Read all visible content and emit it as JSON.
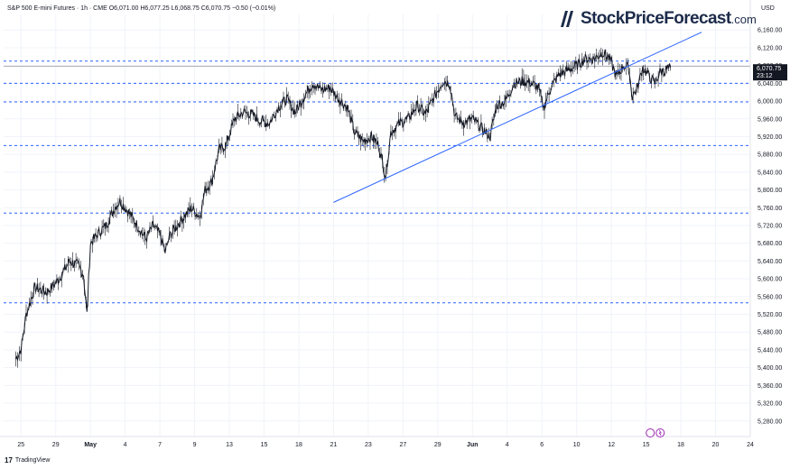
{
  "header": {
    "symbol": "S&P 500 E-mini Futures · 1h · CME",
    "open": "O6,071.00",
    "high": "H6,077.25",
    "low": "L6,068.75",
    "close": "C6,070.75",
    "change": "−0.50 (−0.01%)"
  },
  "brand": {
    "name": "StockPriceForecast",
    "suffix": ".com"
  },
  "footer": {
    "logo": "17",
    "label": "TradingView"
  },
  "axis_currency": "USD",
  "colors": {
    "line": "#2962ff",
    "candle": "#131722",
    "grid": "#f0f3fa",
    "dashed": "#2962ff",
    "price_tag": "#131722"
  },
  "chart_data": {
    "type": "line",
    "ylim": [
      5245,
      6195
    ],
    "xlim": [
      -1,
      42
    ],
    "y_ticks": [
      5280,
      5320,
      5360,
      5400,
      5440,
      5480,
      5520,
      5560,
      5600,
      5640,
      5680,
      5720,
      5760,
      5800,
      5840,
      5880,
      5920,
      5960,
      6000,
      6040,
      6080,
      6120,
      6160
    ],
    "y_tick_labels": [
      "5,280.00",
      "5,320.00",
      "5,360.00",
      "5,400.00",
      "5,440.00",
      "5,480.00",
      "5,520.00",
      "5,560.00",
      "5,600.00",
      "5,640.00",
      "5,680.00",
      "5,720.00",
      "5,760.00",
      "5,800.00",
      "5,840.00",
      "5,880.00",
      "5,920.00",
      "5,960.00",
      "6,000.00",
      "6,040.00",
      "6,080.00",
      "6,120.00",
      "6,160.00"
    ],
    "x_ticks": [
      0,
      2,
      4,
      6,
      8,
      10,
      12,
      14,
      16,
      18,
      20,
      22,
      24,
      26,
      28,
      30,
      32,
      34,
      36,
      38,
      40,
      42
    ],
    "x_tick_labels": [
      "25",
      "29",
      "May",
      "4",
      "7",
      "9",
      "13",
      "15",
      "18",
      "21",
      "23",
      "27",
      "29",
      "Jun",
      "4",
      "6",
      "10",
      "12",
      "15",
      "18",
      "20",
      "24"
    ],
    "price_series": [
      [
        -0.3,
        5420
      ],
      [
        0,
        5440
      ],
      [
        0.3,
        5520
      ],
      [
        0.8,
        5580
      ],
      [
        1.5,
        5570
      ],
      [
        2.2,
        5600
      ],
      [
        2.8,
        5640
      ],
      [
        3.3,
        5630
      ],
      [
        3.6,
        5610
      ],
      [
        3.8,
        5520
      ],
      [
        4.0,
        5680
      ],
      [
        4.4,
        5700
      ],
      [
        4.9,
        5720
      ],
      [
        5.4,
        5760
      ],
      [
        5.7,
        5775
      ],
      [
        6.2,
        5750
      ],
      [
        6.7,
        5720
      ],
      [
        7.2,
        5690
      ],
      [
        7.6,
        5720
      ],
      [
        8.0,
        5700
      ],
      [
        8.3,
        5660
      ],
      [
        8.6,
        5700
      ],
      [
        9.2,
        5730
      ],
      [
        9.8,
        5760
      ],
      [
        10.3,
        5740
      ],
      [
        10.6,
        5800
      ],
      [
        11.0,
        5820
      ],
      [
        11.4,
        5890
      ],
      [
        11.8,
        5900
      ],
      [
        12.3,
        5960
      ],
      [
        12.8,
        5975
      ],
      [
        13.3,
        5970
      ],
      [
        13.8,
        5955
      ],
      [
        14.3,
        5950
      ],
      [
        14.8,
        5985
      ],
      [
        15.3,
        6005
      ],
      [
        15.8,
        5975
      ],
      [
        16.3,
        6010
      ],
      [
        16.8,
        6040
      ],
      [
        17.3,
        6025
      ],
      [
        17.8,
        6030
      ],
      [
        18.3,
        6005
      ],
      [
        18.8,
        5985
      ],
      [
        19.2,
        5930
      ],
      [
        19.7,
        5910
      ],
      [
        20.2,
        5920
      ],
      [
        20.6,
        5900
      ],
      [
        21.0,
        5830
      ],
      [
        21.3,
        5930
      ],
      [
        21.8,
        5950
      ],
      [
        22.3,
        5960
      ],
      [
        22.8,
        5990
      ],
      [
        23.3,
        5970
      ],
      [
        23.8,
        6010
      ],
      [
        24.3,
        6045
      ],
      [
        24.7,
        6040
      ],
      [
        25.0,
        5965
      ],
      [
        25.5,
        5950
      ],
      [
        26.0,
        5960
      ],
      [
        26.5,
        5940
      ],
      [
        27.0,
        5920
      ],
      [
        27.4,
        5990
      ],
      [
        27.9,
        6000
      ],
      [
        28.4,
        6040
      ],
      [
        28.9,
        6045
      ],
      [
        29.4,
        6040
      ],
      [
        29.8,
        6030
      ],
      [
        30.1,
        5985
      ],
      [
        30.5,
        6030
      ],
      [
        31.0,
        6060
      ],
      [
        31.5,
        6070
      ],
      [
        32.0,
        6080
      ],
      [
        32.5,
        6095
      ],
      [
        33.0,
        6095
      ],
      [
        33.5,
        6110
      ],
      [
        33.9,
        6095
      ],
      [
        34.3,
        6055
      ],
      [
        34.7,
        6080
      ],
      [
        35.0,
        6075
      ],
      [
        35.2,
        6010
      ],
      [
        35.5,
        6030
      ],
      [
        35.8,
        6075
      ],
      [
        36.2,
        6055
      ],
      [
        36.5,
        6040
      ],
      [
        36.8,
        6065
      ],
      [
        37.1,
        6070
      ],
      [
        37.4,
        6075
      ]
    ],
    "trendline": [
      [
        18.0,
        5772
      ],
      [
        39.2,
        6155
      ]
    ],
    "dashed_levels": [
      6090,
      6040,
      5998,
      5900,
      5748,
      5546
    ],
    "price_labels": [
      "6,070.75",
      "23:12"
    ],
    "last_price": 6070.75,
    "candle_range": 6078
  }
}
